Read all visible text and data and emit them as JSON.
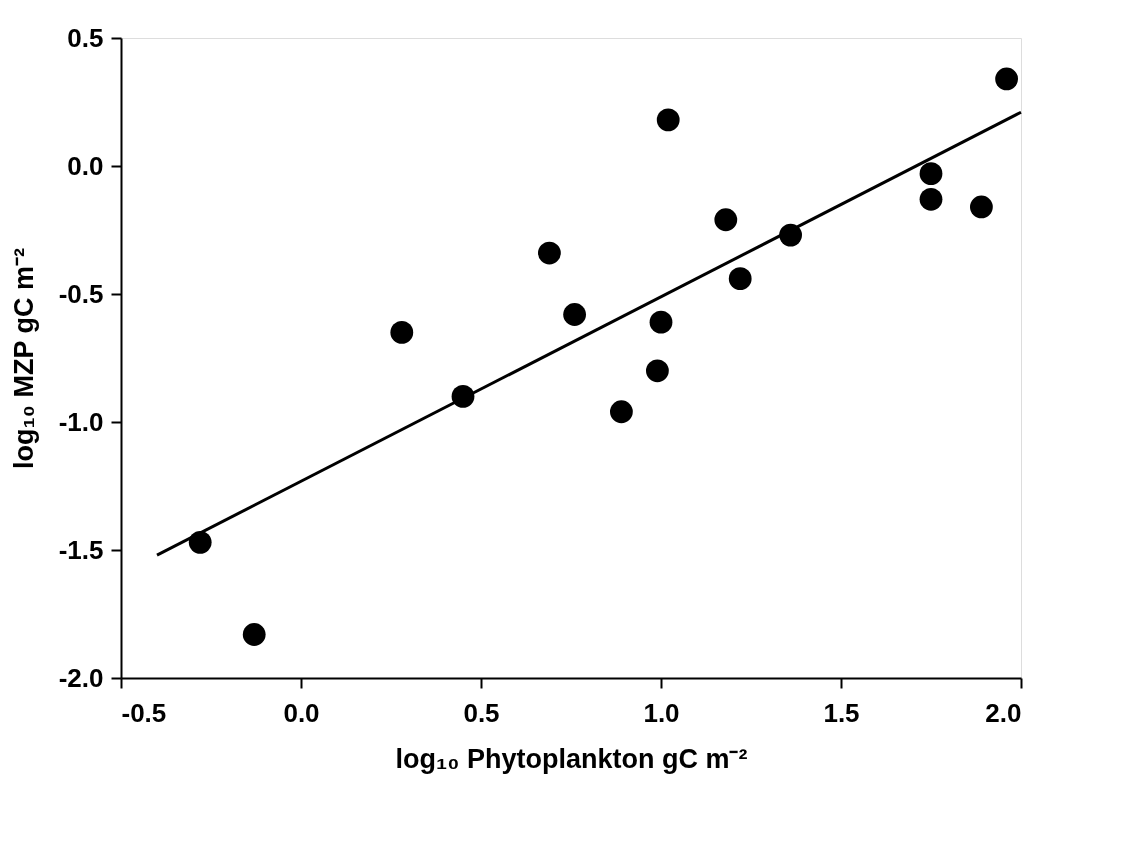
{
  "chart_data": {
    "type": "scatter",
    "xlabel": "log₁₀ Phytoplankton gC m⁻²",
    "ylabel": "log₁₀ MZP gC m⁻²",
    "xlim": [
      -0.5,
      2.0
    ],
    "ylim": [
      -2.0,
      0.5
    ],
    "xticks": [
      {
        "value": -0.5,
        "label": "-0.5"
      },
      {
        "value": 0,
        "label": "0.0"
      },
      {
        "value": 0.5,
        "label": "0.5"
      },
      {
        "value": 1,
        "label": "1.0"
      },
      {
        "value": 1.5,
        "label": "1.5"
      },
      {
        "value": 2,
        "label": "2.0"
      }
    ],
    "yticks": [
      {
        "value": -2,
        "label": "-2.0"
      },
      {
        "value": -1.5,
        "label": "-1.5"
      },
      {
        "value": -1,
        "label": "-1.0"
      },
      {
        "value": -0.5,
        "label": "-0.5"
      },
      {
        "value": 0,
        "label": "0.0"
      },
      {
        "value": 0.5,
        "label": "0.5"
      }
    ],
    "grid": false,
    "marker": "circle",
    "series": [
      {
        "color": "#000000",
        "x": [
          -0.28,
          -0.13,
          0.28,
          0.45,
          0.69,
          0.76,
          0.89,
          0.99,
          1.0,
          1.02,
          1.18,
          1.22,
          1.36,
          1.75,
          1.75,
          1.89,
          1.96
        ],
        "values": [
          -1.47,
          -1.83,
          -0.65,
          -0.9,
          -0.34,
          -0.58,
          -0.96,
          -0.8,
          -0.61,
          0.18,
          -0.21,
          -0.44,
          -0.27,
          -0.03,
          -0.13,
          -0.16,
          0.34
        ]
      },
      {
        "type": "line",
        "color": "#000000",
        "line_style": "solid",
        "marker": "none",
        "x": [
          -0.4,
          2.0
        ],
        "values": [
          -1.52,
          0.21
        ]
      }
    ]
  }
}
